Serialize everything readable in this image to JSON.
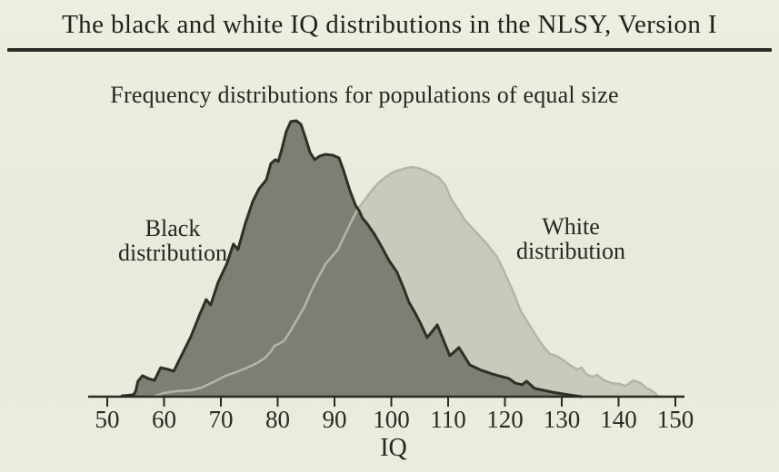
{
  "page": {
    "title": "The black and white IQ distributions in the NLSY, Version I",
    "subtitle": "Frequency distributions for populations of equal size"
  },
  "colors": {
    "background": "#eaecde",
    "ink": "#292b21",
    "title_ink": "#20221b",
    "rule": "#2b2d24",
    "black_distribution_fill": "#7d7f73",
    "black_distribution_stroke": "#2e3026",
    "white_distribution_fill": "#c8cabc",
    "white_distribution_stroke": "#b3b6a7"
  },
  "annotations": {
    "black": {
      "line1": "Black",
      "line2": "distribution"
    },
    "white": {
      "line1": "White",
      "line2": "distribution"
    }
  },
  "chart_data": {
    "type": "area",
    "title": "The black and white IQ distributions in the NLSY, Version I",
    "subtitle": "Frequency distributions for populations of equal size",
    "xlabel": "IQ",
    "ylabel": "",
    "x_ticks": [
      50,
      60,
      70,
      80,
      90,
      100,
      110,
      120,
      130,
      140,
      150
    ],
    "xlim": [
      47,
      152
    ],
    "ylim": [
      0,
      105
    ],
    "grid": false,
    "legend_position": "labels inside plot",
    "y_units": "relative frequency (black peak = 100), y axis not drawn",
    "series": [
      {
        "name": "White distribution",
        "peak_iq": 103,
        "fill": "#c8cabc",
        "stroke": "#b3b6a7",
        "stroke_width": 2.5,
        "points": [
          [
            58.0,
            0.0
          ],
          [
            59.9,
            1.3
          ],
          [
            62.3,
            2.0
          ],
          [
            64.7,
            2.3
          ],
          [
            66.6,
            3.3
          ],
          [
            68.7,
            5.3
          ],
          [
            70.9,
            7.6
          ],
          [
            72.7,
            8.9
          ],
          [
            74.6,
            10.5
          ],
          [
            76.4,
            12.2
          ],
          [
            77.8,
            14.1
          ],
          [
            78.8,
            16.4
          ],
          [
            79.4,
            18.4
          ],
          [
            80.2,
            19.1
          ],
          [
            81.2,
            20.4
          ],
          [
            82.3,
            24.0
          ],
          [
            83.6,
            28.6
          ],
          [
            84.7,
            32.6
          ],
          [
            85.8,
            37.8
          ],
          [
            87.1,
            43.1
          ],
          [
            88.4,
            48.0
          ],
          [
            89.5,
            50.7
          ],
          [
            90.6,
            53.3
          ],
          [
            91.9,
            58.9
          ],
          [
            93.2,
            64.5
          ],
          [
            94.2,
            68.4
          ],
          [
            95.1,
            70.7
          ],
          [
            96.4,
            74.3
          ],
          [
            97.5,
            77.0
          ],
          [
            98.6,
            78.9
          ],
          [
            99.9,
            80.9
          ],
          [
            101.0,
            81.9
          ],
          [
            102.2,
            82.6
          ],
          [
            103.4,
            83.2
          ],
          [
            104.7,
            82.9
          ],
          [
            106.0,
            81.9
          ],
          [
            107.3,
            80.6
          ],
          [
            108.4,
            79.3
          ],
          [
            109.5,
            76.6
          ],
          [
            110.6,
            71.4
          ],
          [
            111.9,
            67.4
          ],
          [
            113.0,
            63.8
          ],
          [
            114.8,
            59.9
          ],
          [
            116.7,
            55.6
          ],
          [
            118.6,
            50.7
          ],
          [
            120.0,
            44.7
          ],
          [
            121.5,
            37.8
          ],
          [
            122.8,
            30.9
          ],
          [
            124.2,
            26.3
          ],
          [
            125.5,
            22.0
          ],
          [
            126.8,
            18.1
          ],
          [
            127.9,
            15.5
          ],
          [
            129.0,
            14.8
          ],
          [
            130.3,
            13.2
          ],
          [
            131.4,
            11.5
          ],
          [
            132.7,
            9.9
          ],
          [
            133.5,
            10.5
          ],
          [
            134.3,
            8.2
          ],
          [
            135.4,
            7.2
          ],
          [
            136.2,
            7.9
          ],
          [
            137.5,
            5.9
          ],
          [
            138.8,
            4.9
          ],
          [
            140.2,
            4.6
          ],
          [
            141.2,
            3.9
          ],
          [
            142.6,
            5.9
          ],
          [
            143.9,
            4.9
          ],
          [
            145.0,
            3.0
          ],
          [
            146.0,
            2.0
          ],
          [
            147.0,
            0.0
          ]
        ]
      },
      {
        "name": "Black distribution",
        "peak_iq": 83,
        "fill": "#7d7f73",
        "stroke": "#2e3026",
        "stroke_width": 3,
        "points": [
          [
            52.6,
            0.3
          ],
          [
            54.6,
            0.7
          ],
          [
            55.0,
            2.0
          ],
          [
            55.4,
            5.6
          ],
          [
            56.2,
            7.6
          ],
          [
            57.2,
            6.6
          ],
          [
            58.3,
            5.9
          ],
          [
            59.4,
            10.5
          ],
          [
            60.7,
            9.9
          ],
          [
            61.7,
            9.2
          ],
          [
            63.1,
            15.1
          ],
          [
            64.7,
            21.7
          ],
          [
            66.3,
            29.9
          ],
          [
            67.4,
            35.2
          ],
          [
            68.2,
            33.2
          ],
          [
            69.5,
            41.4
          ],
          [
            71.0,
            48.0
          ],
          [
            72.2,
            55.3
          ],
          [
            73.0,
            53.3
          ],
          [
            74.3,
            62.8
          ],
          [
            75.6,
            70.7
          ],
          [
            76.7,
            75.3
          ],
          [
            78.0,
            78.6
          ],
          [
            78.8,
            84.5
          ],
          [
            79.6,
            85.9
          ],
          [
            80.1,
            85.2
          ],
          [
            80.7,
            89.5
          ],
          [
            81.5,
            96.1
          ],
          [
            82.3,
            99.7
          ],
          [
            83.3,
            100.0
          ],
          [
            84.1,
            98.7
          ],
          [
            84.9,
            93.8
          ],
          [
            85.7,
            88.5
          ],
          [
            86.5,
            85.9
          ],
          [
            87.4,
            87.2
          ],
          [
            88.4,
            87.8
          ],
          [
            89.7,
            87.5
          ],
          [
            90.8,
            86.5
          ],
          [
            91.6,
            81.9
          ],
          [
            92.7,
            74.7
          ],
          [
            93.7,
            69.4
          ],
          [
            94.4,
            67.1
          ],
          [
            94.9,
            64.8
          ],
          [
            95.8,
            62.5
          ],
          [
            97.0,
            58.9
          ],
          [
            98.3,
            54.3
          ],
          [
            99.6,
            49.3
          ],
          [
            101.0,
            45.1
          ],
          [
            102.2,
            39.1
          ],
          [
            103.1,
            34.2
          ],
          [
            104.2,
            30.3
          ],
          [
            105.2,
            26.3
          ],
          [
            106.3,
            21.4
          ],
          [
            108.1,
            26.0
          ],
          [
            110.3,
            14.8
          ],
          [
            111.9,
            17.8
          ],
          [
            113.8,
            11.5
          ],
          [
            115.9,
            9.5
          ],
          [
            117.8,
            8.2
          ],
          [
            119.4,
            7.3
          ],
          [
            120.7,
            6.6
          ],
          [
            121.8,
            4.9
          ],
          [
            123.0,
            4.3
          ],
          [
            123.8,
            5.6
          ],
          [
            125.2,
            3.0
          ],
          [
            126.8,
            2.3
          ],
          [
            128.4,
            1.6
          ],
          [
            130.2,
            1.0
          ],
          [
            132.2,
            0.4
          ],
          [
            133.5,
            0.0
          ]
        ]
      }
    ]
  }
}
